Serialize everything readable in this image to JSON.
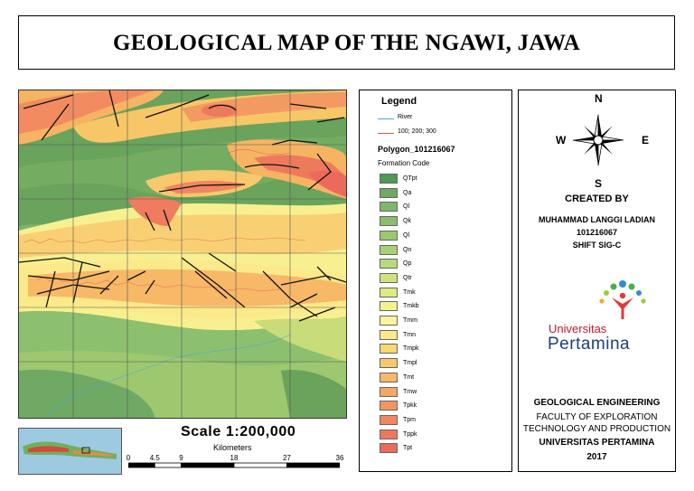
{
  "title": "GEOLOGICAL MAP OF THE NGAWI, JAWA",
  "scale": {
    "label": "Scale  1:200,000",
    "units": "Kilometers",
    "ticks": [
      {
        "label": "0",
        "km": 0
      },
      {
        "label": "4.5",
        "km": 4.5
      },
      {
        "label": "9",
        "km": 9
      },
      {
        "label": "18",
        "km": 18
      },
      {
        "label": "27",
        "km": 27
      },
      {
        "label": "36",
        "km": 36
      }
    ]
  },
  "legend": {
    "title": "Legend",
    "lines": [
      {
        "label": "River",
        "color": "#4aa3df"
      },
      {
        "label": "100; 200; 300",
        "color": "#e0574a"
      }
    ],
    "polygon_layer": "Polygon_101216067",
    "field_label": "Formation Code",
    "units": [
      {
        "code": "QTpt",
        "color": "#4f9a55"
      },
      {
        "code": "Qa",
        "color": "#6fa964"
      },
      {
        "code": "Ql",
        "color": "#7db86a"
      },
      {
        "code": "Qk",
        "color": "#8cbe6e"
      },
      {
        "code": "Ql",
        "color": "#99c870"
      },
      {
        "code": "Qn",
        "color": "#a8d176"
      },
      {
        "code": "Qp",
        "color": "#bcd97a"
      },
      {
        "code": "Qtr",
        "color": "#cfe27c"
      },
      {
        "code": "Tmk",
        "color": "#e1ea7f"
      },
      {
        "code": "Tmkb",
        "color": "#f2f38c"
      },
      {
        "code": "Tmm",
        "color": "#f8f59a"
      },
      {
        "code": "Tmn",
        "color": "#fbe98a"
      },
      {
        "code": "Tmpk",
        "color": "#fbd76f"
      },
      {
        "code": "Tmpl",
        "color": "#f9c86b"
      },
      {
        "code": "Tmt",
        "color": "#f7b868"
      },
      {
        "code": "Tmw",
        "color": "#f5a765"
      },
      {
        "code": "Tpkk",
        "color": "#f39563"
      },
      {
        "code": "Tpm",
        "color": "#f18660"
      },
      {
        "code": "Tppk",
        "color": "#ee765d"
      },
      {
        "code": "Tpt",
        "color": "#ec6a5b"
      }
    ]
  },
  "compass": {
    "n": "N",
    "s": "S",
    "e": "E",
    "w": "W"
  },
  "credits": {
    "created_by": "CREATED BY",
    "author": "MUHAMMAD LANGGI LADIAN",
    "id": "101216067",
    "shift": "SHIFT SIG-C"
  },
  "logo": {
    "line1": "Universitas",
    "line2": "Pertamina"
  },
  "institution": {
    "dept": "GEOLOGICAL ENGINEERING",
    "faculty1": "FACULTY OF EXPLORATION",
    "faculty2": "TECHNOLOGY AND PRODUCTION",
    "university": "UNIVERSITAS PERTAMINA",
    "year": "2017"
  }
}
